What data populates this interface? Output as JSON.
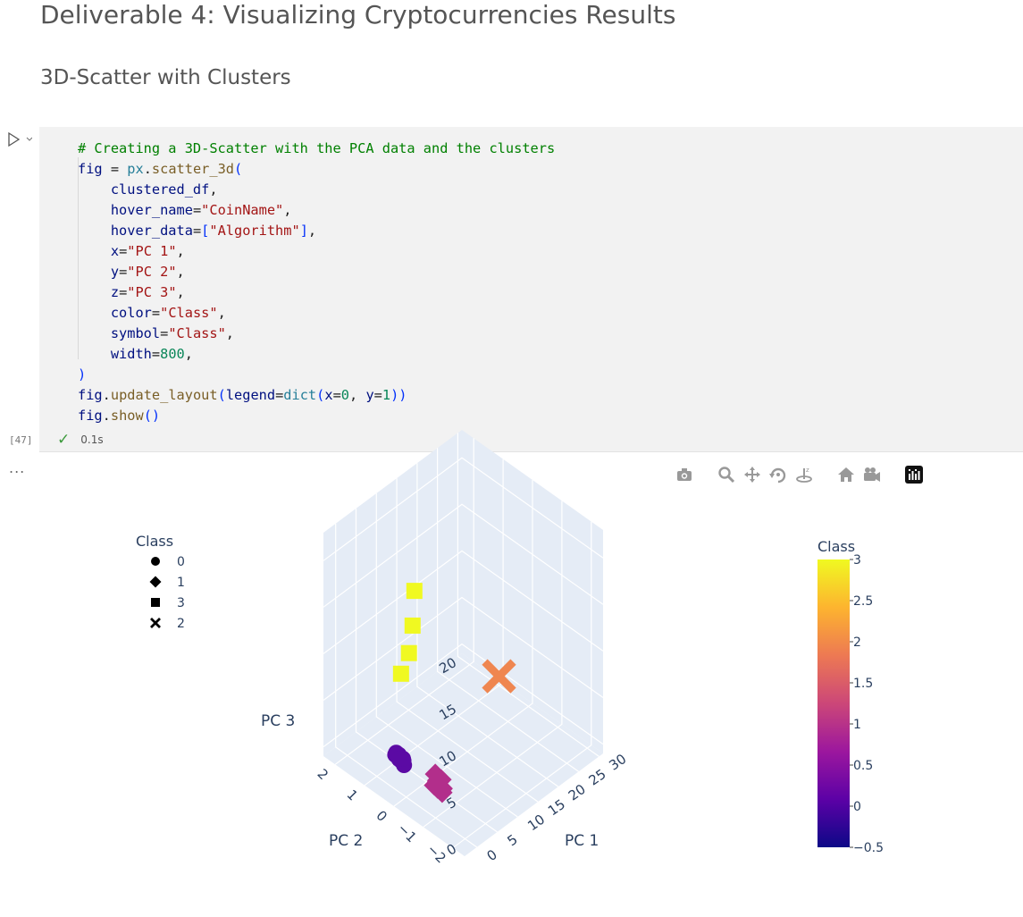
{
  "heading": "Deliverable 4: Visualizing Cryptocurrencies Results",
  "subheading": "3D-Scatter with Clusters",
  "cell": {
    "exec_count": "[47]",
    "duration": "0.1s",
    "lines": [
      [
        {
          "t": "# Creating a 3D-Scatter with the PCA data and the clusters",
          "c": "c-com"
        }
      ],
      [
        {
          "t": "fig ",
          "c": "c-var"
        },
        {
          "t": "= ",
          "c": ""
        },
        {
          "t": "px",
          "c": "c-kw"
        },
        {
          "t": ".",
          "c": ""
        },
        {
          "t": "scatter_3d",
          "c": "c-fn"
        },
        {
          "t": "(",
          "c": "c-br"
        }
      ],
      [
        {
          "t": "    clustered_df",
          "c": "c-var"
        },
        {
          "t": ",",
          "c": ""
        }
      ],
      [
        {
          "t": "    hover_name",
          "c": "c-var"
        },
        {
          "t": "=",
          "c": ""
        },
        {
          "t": "\"CoinName\"",
          "c": "c-str"
        },
        {
          "t": ",",
          "c": ""
        }
      ],
      [
        {
          "t": "    hover_data",
          "c": "c-var"
        },
        {
          "t": "=",
          "c": ""
        },
        {
          "t": "[",
          "c": "c-br"
        },
        {
          "t": "\"Algorithm\"",
          "c": "c-str"
        },
        {
          "t": "]",
          "c": "c-br"
        },
        {
          "t": ",",
          "c": ""
        }
      ],
      [
        {
          "t": "    x",
          "c": "c-var"
        },
        {
          "t": "=",
          "c": ""
        },
        {
          "t": "\"PC 1\"",
          "c": "c-str"
        },
        {
          "t": ",",
          "c": ""
        }
      ],
      [
        {
          "t": "    y",
          "c": "c-var"
        },
        {
          "t": "=",
          "c": ""
        },
        {
          "t": "\"PC 2\"",
          "c": "c-str"
        },
        {
          "t": ",",
          "c": ""
        }
      ],
      [
        {
          "t": "    z",
          "c": "c-var"
        },
        {
          "t": "=",
          "c": ""
        },
        {
          "t": "\"PC 3\"",
          "c": "c-str"
        },
        {
          "t": ",",
          "c": ""
        }
      ],
      [
        {
          "t": "    color",
          "c": "c-var"
        },
        {
          "t": "=",
          "c": ""
        },
        {
          "t": "\"Class\"",
          "c": "c-str"
        },
        {
          "t": ",",
          "c": ""
        }
      ],
      [
        {
          "t": "    symbol",
          "c": "c-var"
        },
        {
          "t": "=",
          "c": ""
        },
        {
          "t": "\"Class\"",
          "c": "c-str"
        },
        {
          "t": ",",
          "c": ""
        }
      ],
      [
        {
          "t": "    width",
          "c": "c-var"
        },
        {
          "t": "=",
          "c": ""
        },
        {
          "t": "800",
          "c": "c-num"
        },
        {
          "t": ",",
          "c": ""
        }
      ],
      [
        {
          "t": ")",
          "c": "c-br"
        }
      ],
      [
        {
          "t": "fig",
          "c": "c-var"
        },
        {
          "t": ".",
          "c": ""
        },
        {
          "t": "update_layout",
          "c": "c-fn"
        },
        {
          "t": "(",
          "c": "c-br"
        },
        {
          "t": "legend",
          "c": "c-var"
        },
        {
          "t": "=",
          "c": ""
        },
        {
          "t": "dict",
          "c": "c-kw"
        },
        {
          "t": "(",
          "c": "c-br"
        },
        {
          "t": "x",
          "c": "c-var"
        },
        {
          "t": "=",
          "c": ""
        },
        {
          "t": "0",
          "c": "c-num"
        },
        {
          "t": ", ",
          "c": ""
        },
        {
          "t": "y",
          "c": "c-var"
        },
        {
          "t": "=",
          "c": ""
        },
        {
          "t": "1",
          "c": "c-num"
        },
        {
          "t": "))",
          "c": "c-br"
        }
      ],
      [
        {
          "t": "fig",
          "c": "c-var"
        },
        {
          "t": ".",
          "c": ""
        },
        {
          "t": "show",
          "c": "c-fn"
        },
        {
          "t": "()",
          "c": "c-br"
        }
      ]
    ]
  },
  "more_label": "...",
  "modebar": [
    {
      "name": "camera-icon"
    },
    {
      "name": "zoom-icon"
    },
    {
      "name": "pan-icon"
    },
    {
      "name": "orbit-rotation-icon"
    },
    {
      "name": "turntable-rotation-icon"
    },
    {
      "name": "home-icon"
    },
    {
      "name": "camera-view-icon"
    },
    {
      "name": "plotly-logo-icon"
    }
  ],
  "chart_data": {
    "type": "scatter",
    "dimensions": 3,
    "x_axis": "PC 1",
    "y_axis": "PC 2",
    "z_axis": "PC 3",
    "x_ticks": [
      "0",
      "5",
      "10",
      "15",
      "20",
      "25",
      "30"
    ],
    "y_ticks": [
      "−2",
      "−1",
      "0",
      "1",
      "2"
    ],
    "z_ticks": [
      "0",
      "5",
      "10",
      "15",
      "20"
    ],
    "legend": {
      "title": "Class",
      "placement": "top-left",
      "entries": [
        {
          "label": "0",
          "symbol": "circle"
        },
        {
          "label": "1",
          "symbol": "diamond"
        },
        {
          "label": "3",
          "symbol": "square"
        },
        {
          "label": "2",
          "symbol": "x"
        }
      ]
    },
    "colorbar": {
      "title": "Class",
      "range": [
        -0.5,
        3
      ],
      "ticks": [
        "3",
        "2.5",
        "2",
        "1.5",
        "1",
        "0.5",
        "0",
        "−0.5"
      ],
      "colors": [
        "#0d0887",
        "#5c01a6",
        "#9c179e",
        "#cc4778",
        "#ed7953",
        "#fdb42f",
        "#f0f921"
      ]
    },
    "series": [
      {
        "name": "0",
        "symbol": "circle",
        "color": "#5b0aa4",
        "points": [
          [
            2.0,
            0.5,
            1.6
          ],
          [
            2.5,
            0.6,
            1.4
          ],
          [
            3.0,
            0.7,
            1.0
          ],
          [
            2.2,
            0.4,
            1.3
          ],
          [
            3.4,
            0.6,
            0.6
          ],
          [
            1.6,
            0.4,
            1.5
          ],
          [
            1.0,
            0.3,
            1.9
          ],
          [
            0.9,
            0.2,
            1.7
          ],
          [
            3.3,
            0.8,
            0.9
          ],
          [
            2.8,
            0.5,
            1.1
          ],
          [
            3.8,
            0.9,
            0.3
          ],
          [
            4.0,
            0.8,
            0.0
          ]
        ]
      },
      {
        "name": "1",
        "symbol": "diamond",
        "color": "#b22e8b",
        "points": [
          [
            0.0,
            -1.2,
            2.5
          ],
          [
            -0.5,
            -1.3,
            3.0
          ],
          [
            -1.0,
            -1.2,
            3.8
          ],
          [
            -2.0,
            -1.5,
            3.5
          ],
          [
            -0.8,
            -1.1,
            4.2
          ],
          [
            0.5,
            -1.0,
            2.0
          ],
          [
            -1.5,
            -1.4,
            4.5
          ],
          [
            -2.5,
            -1.3,
            4.0
          ],
          [
            -0.3,
            -1.1,
            3.2
          ]
        ]
      },
      {
        "name": "3",
        "symbol": "square",
        "color": "#f0f921",
        "points": [
          [
            2.0,
            0.0,
            20.5
          ],
          [
            3.0,
            0.2,
            16.0
          ],
          [
            5.0,
            0.6,
            11.5
          ],
          [
            4.5,
            0.8,
            9.0
          ]
        ]
      },
      {
        "name": "2",
        "symbol": "x",
        "color": "#ef8650",
        "points": [
          [
            30.0,
            1.0,
            0.0
          ]
        ]
      }
    ]
  }
}
